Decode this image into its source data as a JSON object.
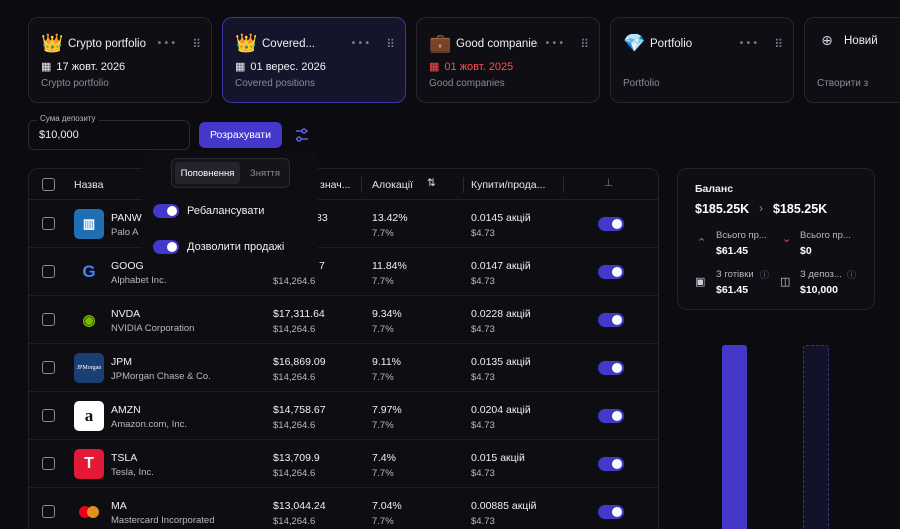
{
  "cards": [
    {
      "emoji": "👑",
      "title": "Crypto portfolio",
      "date": "17 жовт. 2026",
      "sub": "Crypto portfolio",
      "date_red": false
    },
    {
      "emoji": "👑",
      "title": "Covered...",
      "date": "01 верес. 2026",
      "sub": "Covered positions",
      "date_red": false
    },
    {
      "emoji": "💼",
      "title": "Good companies",
      "date": "01 жовт. 2025",
      "sub": "Good companies",
      "date_red": true
    },
    {
      "emoji": "💎",
      "title": "Portfolio",
      "date": "",
      "sub": "Portfolio",
      "date_red": false
    },
    {
      "emoji": "⊕",
      "title": "Новий",
      "date": "",
      "sub": "Створити з",
      "date_red": false
    }
  ],
  "deposit": {
    "label": "Сума депозиту",
    "value": "$10,000"
  },
  "calc_button": "Розрахувати",
  "popup": {
    "tab_active": "Поповнення",
    "tab_inactive": "Зняття",
    "rebalance_label": "Ребалансувати",
    "allow_sales_label": "Дозволити продажі"
  },
  "table": {
    "headers": {
      "name": "Назва",
      "value": "знач...",
      "alloc": "Алокації",
      "buy": "Купити/прода..."
    },
    "rows": [
      {
        "ticker": "PANW",
        "name": "Palo A",
        "v1": "83",
        "v2": "",
        "a1": "13.42%",
        "a2": "7.7%",
        "b1": "0.0145 акцій",
        "b2": "$4.73",
        "logo": "panw"
      },
      {
        "ticker": "GOOG",
        "name": "Alphabet Inc.",
        "v1": "7",
        "v2": "$14,264.6",
        "a1": "11.84%",
        "a2": "7.7%",
        "b1": "0.0147 акцій",
        "b2": "$4.73",
        "logo": "goog"
      },
      {
        "ticker": "NVDA",
        "name": "NVIDIA Corporation",
        "v1": "$17,311.64",
        "v2": "$14,264.6",
        "a1": "9.34%",
        "a2": "7.7%",
        "b1": "0.0228 акцій",
        "b2": "$4.73",
        "logo": "nvda"
      },
      {
        "ticker": "JPM",
        "name": "JPMorgan Chase & Co.",
        "v1": "$16,869.09",
        "v2": "$14,264.6",
        "a1": "9.11%",
        "a2": "7.7%",
        "b1": "0.0135 акцій",
        "b2": "$4.73",
        "logo": "jpm"
      },
      {
        "ticker": "AMZN",
        "name": "Amazon.com, Inc.",
        "v1": "$14,758.67",
        "v2": "$14,264.6",
        "a1": "7.97%",
        "a2": "7.7%",
        "b1": "0.0204 акцій",
        "b2": "$4.73",
        "logo": "amzn"
      },
      {
        "ticker": "TSLA",
        "name": "Tesla, Inc.",
        "v1": "$13,709.9",
        "v2": "$14,264.6",
        "a1": "7.4%",
        "a2": "7.7%",
        "b1": "0.015 акцій",
        "b2": "$4.73",
        "logo": "tsla"
      },
      {
        "ticker": "MA",
        "name": "Mastercard Incorporated",
        "v1": "$13,044.24",
        "v2": "$14,264.6",
        "a1": "7.04%",
        "a2": "7.7%",
        "b1": "0.00885 акцій",
        "b2": "$4.73",
        "logo": "ma"
      }
    ]
  },
  "balance": {
    "title": "Баланс",
    "from": "$185.25K",
    "to": "$185.25K",
    "total_in_label": "Всього пр...",
    "total_in_value": "$61.45",
    "total_out_label": "Всього пр...",
    "total_out_value": "$0",
    "cash_label": "З готівки",
    "cash_value": "$61.45",
    "deposit_label": "З депоз...",
    "deposit_value": "$10,000"
  },
  "colors": {
    "accent": "#4338ca",
    "red": "#ff4d4d",
    "green": "#22c55e"
  }
}
